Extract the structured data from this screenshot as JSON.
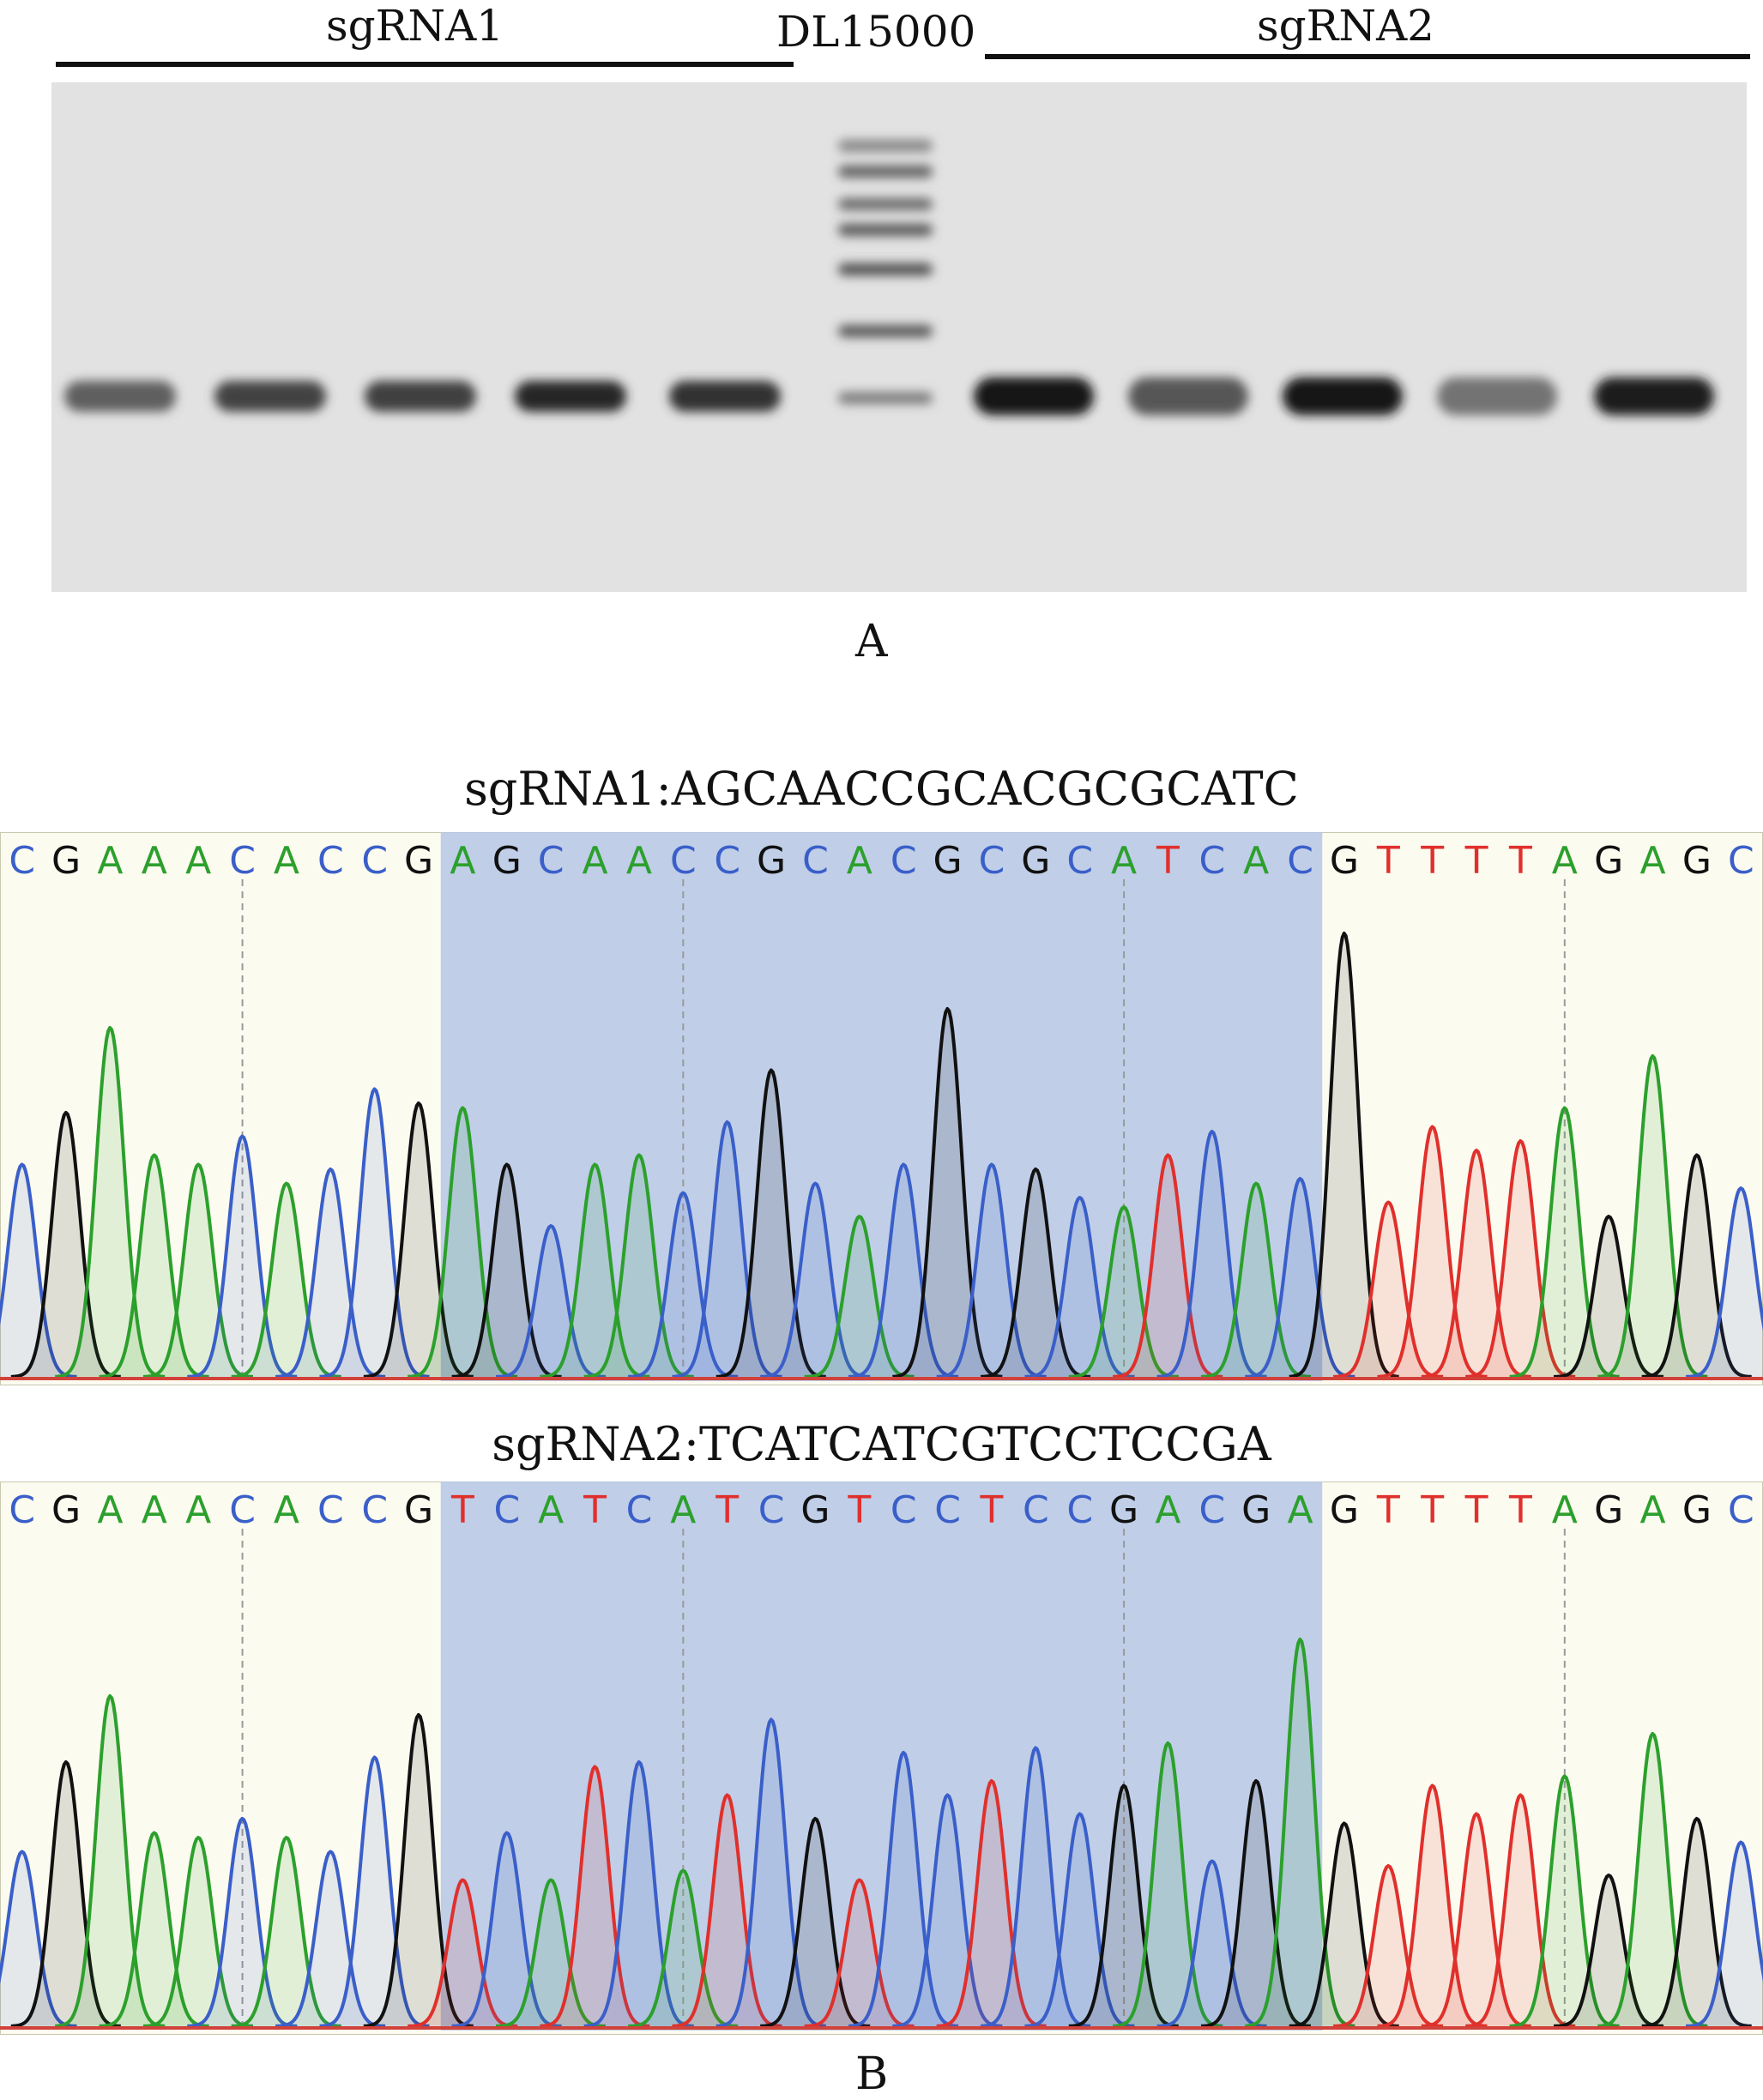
{
  "panel_a": {
    "label_left": "sgRNA1",
    "label_center": "DL15000",
    "label_right": "sgRNA2",
    "panel_letter": "A",
    "sample_band_intensity_left": [
      0.55,
      0.7,
      0.72,
      0.85,
      0.8
    ],
    "sample_band_intensity_right": [
      0.95,
      0.6,
      0.92,
      0.45,
      0.9
    ],
    "ladder_band_intensity": [
      0.35,
      0.55,
      0.5,
      0.6,
      0.65,
      0.6,
      0.4
    ]
  },
  "panel_b": {
    "panel_letter": "B",
    "colors": {
      "A": "#2ca02c",
      "C": "#3a5fc9",
      "G": "#111111",
      "T": "#e0302c",
      "highlight": "#b5c6e6",
      "background": "#fcfbf0"
    },
    "traces": [
      {
        "title": "sgRNA1:AGCAACCGCACGCGCATC",
        "bases": [
          "C",
          "G",
          "A",
          "A",
          "A",
          "C",
          "A",
          "C",
          "C",
          "G",
          "A",
          "G",
          "C",
          "A",
          "A",
          "C",
          "C",
          "G",
          "C",
          "A",
          "C",
          "G",
          "C",
          "G",
          "C",
          "A",
          "T",
          "C",
          "A",
          "C",
          "G",
          "T",
          "T",
          "T",
          "T",
          "A",
          "G",
          "A",
          "G",
          "C"
        ],
        "peak_heights": [
          0.45,
          0.56,
          0.74,
          0.47,
          0.45,
          0.51,
          0.41,
          0.44,
          0.61,
          0.58,
          0.57,
          0.45,
          0.32,
          0.45,
          0.47,
          0.39,
          0.54,
          0.65,
          0.41,
          0.34,
          0.45,
          0.78,
          0.45,
          0.44,
          0.38,
          0.36,
          0.47,
          0.52,
          0.41,
          0.42,
          0.94,
          0.37,
          0.53,
          0.48,
          0.5,
          0.57,
          0.34,
          0.68,
          0.47,
          0.4
        ],
        "highlight_range": [
          10,
          29
        ]
      },
      {
        "title": "sgRNA2:TCATCATCGTCCTCCGA",
        "bases": [
          "C",
          "G",
          "A",
          "A",
          "A",
          "C",
          "A",
          "C",
          "C",
          "G",
          "T",
          "C",
          "A",
          "T",
          "C",
          "A",
          "T",
          "C",
          "G",
          "T",
          "C",
          "C",
          "T",
          "C",
          "C",
          "G",
          "A",
          "C",
          "G",
          "A",
          "G",
          "T",
          "T",
          "T",
          "T",
          "A",
          "G",
          "A",
          "G",
          "C"
        ],
        "peak_heights": [
          0.37,
          0.56,
          0.7,
          0.41,
          0.4,
          0.44,
          0.4,
          0.37,
          0.57,
          0.66,
          0.31,
          0.41,
          0.31,
          0.55,
          0.56,
          0.33,
          0.49,
          0.65,
          0.44,
          0.31,
          0.58,
          0.49,
          0.52,
          0.59,
          0.45,
          0.51,
          0.6,
          0.35,
          0.52,
          0.82,
          0.43,
          0.34,
          0.51,
          0.45,
          0.49,
          0.53,
          0.32,
          0.62,
          0.44,
          0.39
        ],
        "highlight_range": [
          10,
          29
        ]
      }
    ]
  }
}
